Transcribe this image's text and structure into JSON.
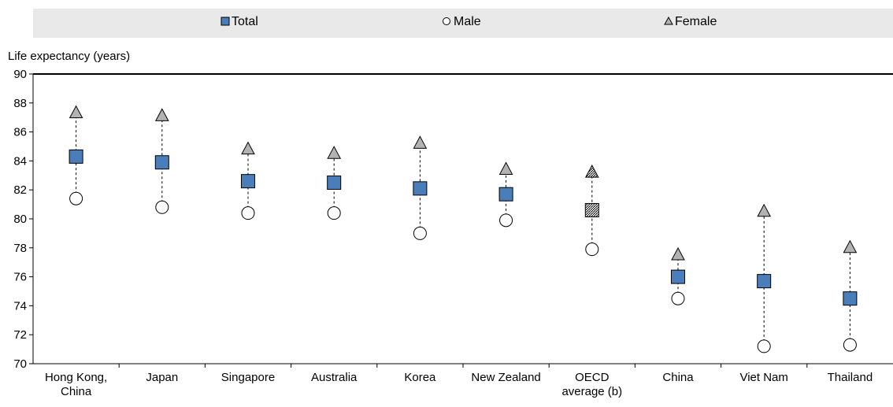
{
  "chart_data": {
    "type": "scatter",
    "title": "",
    "ylabel": "Life expectancy (years)",
    "xlabel": "",
    "ylim": [
      70,
      90
    ],
    "yticks": [
      70,
      72,
      74,
      76,
      78,
      80,
      82,
      84,
      86,
      88,
      90
    ],
    "categories": [
      [
        "Hong Kong,",
        "China"
      ],
      [
        "Japan"
      ],
      [
        "Singapore"
      ],
      [
        "Australia"
      ],
      [
        "Korea"
      ],
      [
        "New Zealand"
      ],
      [
        "OECD",
        "average (b)"
      ],
      [
        "China"
      ],
      [
        "Viet Nam"
      ],
      [
        "Thailand"
      ]
    ],
    "highlight_category_index": 6,
    "series": [
      {
        "name": "Total",
        "marker": "square",
        "color": "#4a7ebb",
        "values": [
          84.3,
          83.9,
          82.6,
          82.5,
          82.1,
          81.7,
          80.6,
          76.0,
          75.7,
          74.5
        ]
      },
      {
        "name": "Male",
        "marker": "circle",
        "color": "#ffffff",
        "values": [
          81.4,
          80.8,
          80.4,
          80.4,
          79.0,
          79.9,
          77.9,
          74.5,
          71.2,
          71.3
        ]
      },
      {
        "name": "Female",
        "marker": "triangle",
        "color": "#b3b3b3",
        "values": [
          87.3,
          87.1,
          84.8,
          84.5,
          85.2,
          83.4,
          83.2,
          77.5,
          80.5,
          78.0
        ]
      }
    ],
    "legend_position": "top"
  }
}
